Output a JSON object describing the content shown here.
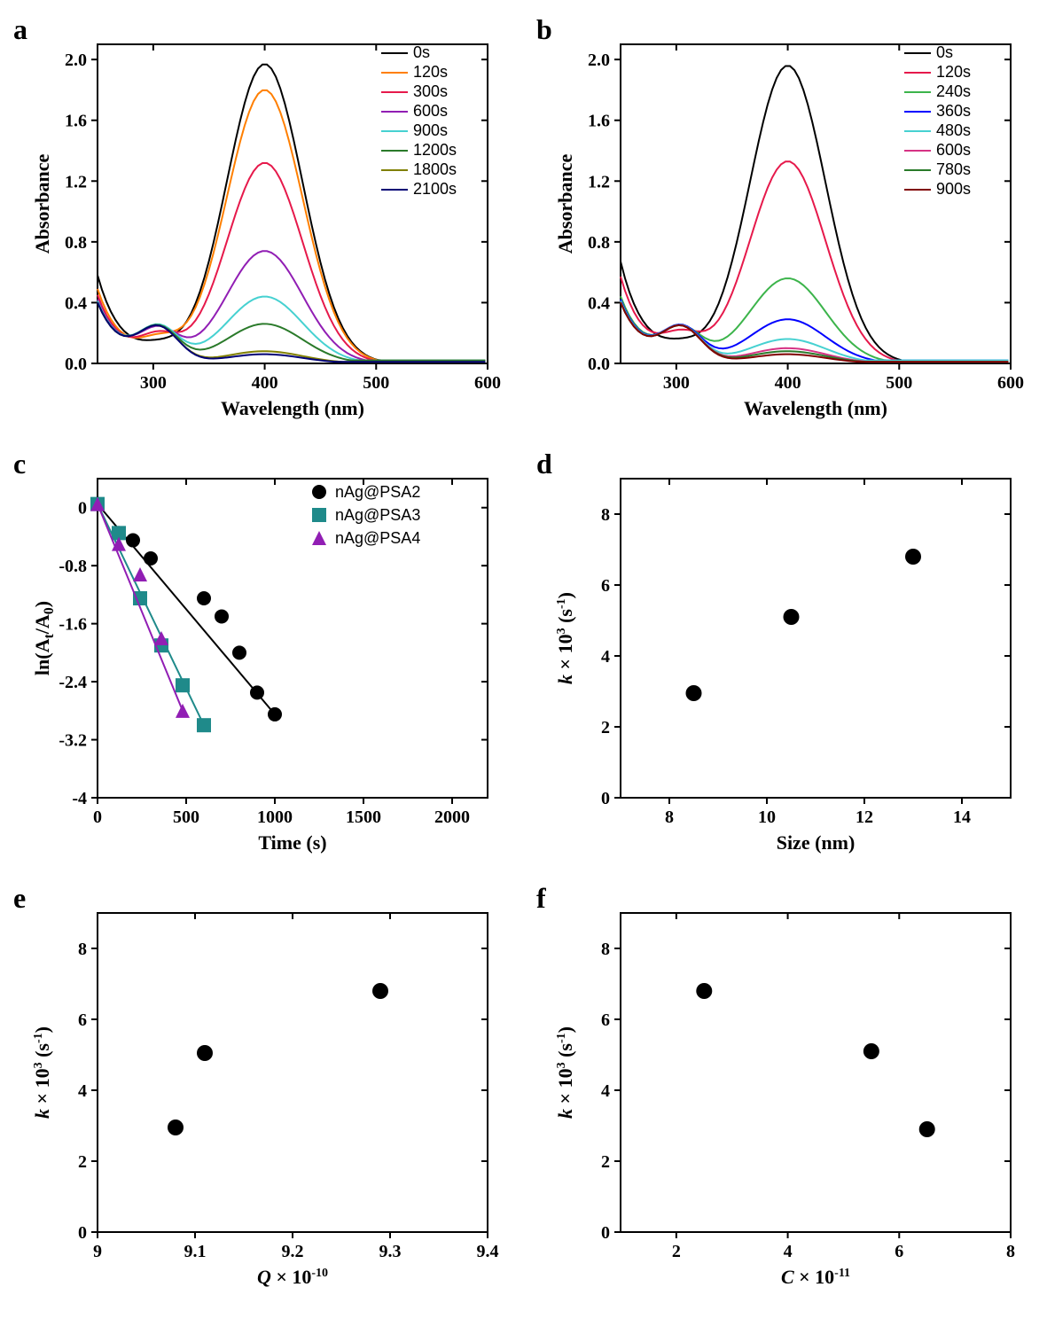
{
  "panels": {
    "a": {
      "label": "a",
      "type": "line",
      "xlabel": "Wavelength (nm)",
      "ylabel": "Absorbance",
      "xlim": [
        250,
        600
      ],
      "ylim": [
        0,
        2.1
      ],
      "xticks": [
        300,
        400,
        500,
        600
      ],
      "yticks": [
        0.0,
        0.4,
        0.8,
        1.2,
        1.6,
        2.0
      ],
      "legend_pos": "top-right",
      "background": "#ffffff",
      "axis_color": "#000000",
      "label_fontsize": 22,
      "tick_fontsize": 20,
      "line_width": 2,
      "series": [
        {
          "name": "0s",
          "color": "#000000",
          "peak_x": 400,
          "peak_y": 1.97,
          "left_bump_x": 305,
          "left_bump_y": 0.12,
          "baseline": 0.02,
          "left_start": 0.58
        },
        {
          "name": "120s",
          "color": "#ff7f00",
          "peak_x": 400,
          "peak_y": 1.8,
          "left_bump_x": 305,
          "left_bump_y": 0.2,
          "baseline": 0.02,
          "left_start": 0.49
        },
        {
          "name": "300s",
          "color": "#e6194b",
          "peak_x": 400,
          "peak_y": 1.32,
          "left_bump_x": 305,
          "left_bump_y": 0.25,
          "baseline": 0.02,
          "left_start": 0.45
        },
        {
          "name": "600s",
          "color": "#911eb4",
          "peak_x": 400,
          "peak_y": 0.74,
          "left_bump_x": 305,
          "left_bump_y": 0.33,
          "baseline": 0.02,
          "left_start": 0.42
        },
        {
          "name": "900s",
          "color": "#46d1d1",
          "peak_x": 400,
          "peak_y": 0.44,
          "left_bump_x": 305,
          "left_bump_y": 0.36,
          "baseline": 0.02,
          "left_start": 0.41
        },
        {
          "name": "1200s",
          "color": "#2a7a2a",
          "peak_x": 400,
          "peak_y": 0.26,
          "left_bump_x": 305,
          "left_bump_y": 0.36,
          "baseline": 0.02,
          "left_start": 0.4
        },
        {
          "name": "1800s",
          "color": "#808000",
          "peak_x": 400,
          "peak_y": 0.08,
          "left_bump_x": 305,
          "left_bump_y": 0.36,
          "baseline": 0.01,
          "left_start": 0.4
        },
        {
          "name": "2100s",
          "color": "#000075",
          "peak_x": 400,
          "peak_y": 0.06,
          "left_bump_x": 305,
          "left_bump_y": 0.36,
          "baseline": 0.01,
          "left_start": 0.4
        }
      ]
    },
    "b": {
      "label": "b",
      "type": "line",
      "xlabel": "Wavelength (nm)",
      "ylabel": "Absorbance",
      "xlim": [
        250,
        600
      ],
      "ylim": [
        0,
        2.1
      ],
      "xticks": [
        300,
        400,
        500,
        600
      ],
      "yticks": [
        0.0,
        0.4,
        0.8,
        1.2,
        1.6,
        2.0
      ],
      "legend_pos": "top-right",
      "background": "#ffffff",
      "axis_color": "#000000",
      "label_fontsize": 22,
      "tick_fontsize": 20,
      "line_width": 2,
      "series": [
        {
          "name": "0s",
          "color": "#000000",
          "peak_x": 400,
          "peak_y": 1.96,
          "left_bump_x": 305,
          "left_bump_y": 0.12,
          "baseline": 0.02,
          "left_start": 0.67
        },
        {
          "name": "120s",
          "color": "#e6194b",
          "peak_x": 400,
          "peak_y": 1.33,
          "left_bump_x": 305,
          "left_bump_y": 0.25,
          "baseline": 0.02,
          "left_start": 0.57
        },
        {
          "name": "240s",
          "color": "#3cb44b",
          "peak_x": 400,
          "peak_y": 0.56,
          "left_bump_x": 305,
          "left_bump_y": 0.34,
          "baseline": 0.02,
          "left_start": 0.44
        },
        {
          "name": "360s",
          "color": "#0000ff",
          "peak_x": 400,
          "peak_y": 0.29,
          "left_bump_x": 305,
          "left_bump_y": 0.36,
          "baseline": 0.02,
          "left_start": 0.42
        },
        {
          "name": "480s",
          "color": "#46d1d1",
          "peak_x": 400,
          "peak_y": 0.16,
          "left_bump_x": 305,
          "left_bump_y": 0.36,
          "baseline": 0.02,
          "left_start": 0.41
        },
        {
          "name": "600s",
          "color": "#d63384",
          "peak_x": 400,
          "peak_y": 0.1,
          "left_bump_x": 305,
          "left_bump_y": 0.36,
          "baseline": 0.01,
          "left_start": 0.4
        },
        {
          "name": "780s",
          "color": "#2a7a2a",
          "peak_x": 400,
          "peak_y": 0.08,
          "left_bump_x": 305,
          "left_bump_y": 0.36,
          "baseline": 0.01,
          "left_start": 0.4
        },
        {
          "name": "900s",
          "color": "#800000",
          "peak_x": 400,
          "peak_y": 0.06,
          "left_bump_x": 305,
          "left_bump_y": 0.36,
          "baseline": 0.01,
          "left_start": 0.4
        }
      ]
    },
    "c": {
      "label": "c",
      "type": "scatter-line",
      "xlabel": "Time (s)",
      "ylabel": "ln(A_t/A_0)",
      "ylabel_html": "ln(A<tspan baseline-shift='-5' font-size='16'>t</tspan>/A<tspan baseline-shift='-5' font-size='16'>0</tspan>)",
      "xlim": [
        0,
        2200
      ],
      "ylim": [
        -4.0,
        0.4
      ],
      "xticks": [
        0,
        500,
        1000,
        1500,
        2000
      ],
      "yticks": [
        -4.0,
        -3.2,
        -2.4,
        -1.6,
        -0.8,
        0.0
      ],
      "legend_pos": "top-right",
      "background": "#ffffff",
      "marker_size": 8,
      "line_width": 2,
      "series": [
        {
          "name": "nAg@PSA2",
          "color": "#000000",
          "marker": "circle",
          "x": [
            0,
            120,
            200,
            300,
            600,
            700,
            800,
            900,
            1000
          ],
          "y": [
            0.05,
            -0.35,
            -0.45,
            -0.7,
            -1.25,
            -1.5,
            -2.0,
            -2.55,
            -2.85
          ]
        },
        {
          "name": "nAg@PSA3",
          "color": "#1f8a8a",
          "marker": "square",
          "x": [
            0,
            120,
            240,
            360,
            480,
            600
          ],
          "y": [
            0.05,
            -0.35,
            -1.25,
            -1.9,
            -2.45,
            -3.0
          ]
        },
        {
          "name": "nAg@PSA4",
          "color": "#911eb4",
          "marker": "triangle",
          "x": [
            0,
            120,
            240,
            360,
            480
          ],
          "y": [
            0.05,
            -0.5,
            -0.92,
            -1.8,
            -2.8
          ]
        }
      ]
    },
    "d": {
      "label": "d",
      "type": "scatter",
      "xlabel": "Size (nm)",
      "ylabel": "k × 10^3 (s^-1)",
      "ylabel_html": "<tspan font-style='italic'>k</tspan> × 10<tspan baseline-shift='8' font-size='14'>3</tspan> (s<tspan baseline-shift='8' font-size='14'>-1</tspan>)",
      "xlim": [
        7,
        15
      ],
      "ylim": [
        0,
        9
      ],
      "xticks": [
        8,
        10,
        12,
        14
      ],
      "yticks": [
        0,
        2,
        4,
        6,
        8
      ],
      "background": "#ffffff",
      "marker_size": 9,
      "marker_color": "#000000",
      "points": {
        "x": [
          8.5,
          10.5,
          13.0
        ],
        "y": [
          2.95,
          5.1,
          6.8
        ]
      }
    },
    "e": {
      "label": "e",
      "type": "scatter",
      "xlabel": "Q × 10^-10",
      "xlabel_html": "<tspan font-style='italic'>Q</tspan> × 10<tspan baseline-shift='8' font-size='14'>-10</tspan>",
      "ylabel": "k × 10^3 (s^-1)",
      "ylabel_html": "<tspan font-style='italic'>k</tspan> × 10<tspan baseline-shift='8' font-size='14'>3</tspan> (s<tspan baseline-shift='8' font-size='14'>-1</tspan>)",
      "xlim": [
        9.0,
        9.4
      ],
      "ylim": [
        0,
        9
      ],
      "xticks": [
        9.0,
        9.1,
        9.2,
        9.3,
        9.4
      ],
      "yticks": [
        0,
        2,
        4,
        6,
        8
      ],
      "background": "#ffffff",
      "marker_size": 9,
      "marker_color": "#000000",
      "points": {
        "x": [
          9.08,
          9.11,
          9.29
        ],
        "y": [
          2.95,
          5.05,
          6.8
        ]
      }
    },
    "f": {
      "label": "f",
      "type": "scatter",
      "xlabel": "C × 10^-11",
      "xlabel_html": "<tspan font-style='italic'>C</tspan> × 10<tspan baseline-shift='8' font-size='14'>-11</tspan>",
      "ylabel": "k × 10^3 (s^-1)",
      "ylabel_html": "<tspan font-style='italic'>k</tspan> × 10<tspan baseline-shift='8' font-size='14'>3</tspan> (s<tspan baseline-shift='8' font-size='14'>-1</tspan>)",
      "xlim": [
        1,
        8
      ],
      "ylim": [
        0,
        9
      ],
      "xticks": [
        2,
        4,
        6,
        8
      ],
      "yticks": [
        0,
        2,
        4,
        6,
        8
      ],
      "background": "#ffffff",
      "marker_size": 9,
      "marker_color": "#000000",
      "points": {
        "x": [
          2.5,
          5.5,
          6.5
        ],
        "y": [
          6.8,
          5.1,
          2.9
        ]
      }
    }
  }
}
